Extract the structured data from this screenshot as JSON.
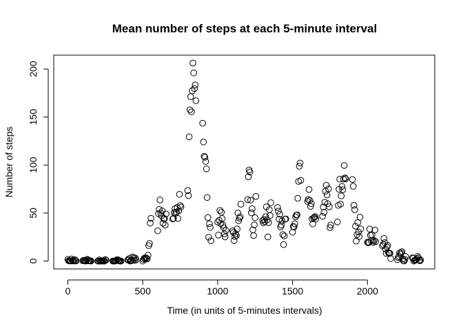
{
  "chart_data": {
    "type": "scatter",
    "title": "Mean number of steps at each 5-minute interval",
    "x_label": "Time (in units of 5-minutes intervals)",
    "y_label": "Number of steps",
    "xlim": [
      -94.2,
      2449.2
    ],
    "ylim": [
      -8.25,
      214.42
    ],
    "xticks": [
      0,
      500,
      1000,
      1500,
      2000
    ],
    "yticks": [
      0,
      50,
      100,
      150,
      200
    ],
    "color": "#000000",
    "x": [
      0,
      5,
      10,
      15,
      20,
      25,
      30,
      35,
      40,
      45,
      50,
      55,
      100,
      105,
      110,
      115,
      120,
      125,
      130,
      135,
      140,
      145,
      150,
      155,
      200,
      205,
      210,
      215,
      220,
      225,
      230,
      235,
      240,
      245,
      250,
      255,
      300,
      305,
      310,
      315,
      320,
      325,
      330,
      335,
      340,
      345,
      350,
      355,
      400,
      405,
      410,
      415,
      420,
      425,
      430,
      435,
      440,
      445,
      450,
      455,
      500,
      505,
      510,
      515,
      520,
      525,
      530,
      535,
      540,
      545,
      550,
      555,
      600,
      605,
      610,
      615,
      620,
      625,
      630,
      635,
      640,
      645,
      650,
      655,
      700,
      705,
      710,
      715,
      720,
      725,
      730,
      735,
      740,
      745,
      750,
      755,
      800,
      805,
      810,
      815,
      820,
      825,
      830,
      835,
      840,
      845,
      850,
      855,
      900,
      905,
      910,
      915,
      920,
      925,
      930,
      935,
      940,
      945,
      950,
      955,
      1000,
      1005,
      1010,
      1015,
      1020,
      1025,
      1030,
      1035,
      1040,
      1045,
      1050,
      1055,
      1100,
      1105,
      1110,
      1115,
      1120,
      1125,
      1130,
      1135,
      1140,
      1145,
      1150,
      1155,
      1200,
      1205,
      1210,
      1215,
      1220,
      1225,
      1230,
      1235,
      1240,
      1245,
      1250,
      1255,
      1300,
      1305,
      1310,
      1315,
      1320,
      1325,
      1330,
      1335,
      1340,
      1345,
      1350,
      1355,
      1400,
      1405,
      1410,
      1415,
      1420,
      1425,
      1430,
      1435,
      1440,
      1445,
      1450,
      1455,
      1500,
      1505,
      1510,
      1515,
      1520,
      1525,
      1530,
      1535,
      1540,
      1545,
      1550,
      1555,
      1600,
      1605,
      1610,
      1615,
      1620,
      1625,
      1630,
      1635,
      1640,
      1645,
      1650,
      1655,
      1700,
      1705,
      1710,
      1715,
      1720,
      1725,
      1730,
      1735,
      1740,
      1745,
      1750,
      1755,
      1800,
      1805,
      1810,
      1815,
      1820,
      1825,
      1830,
      1835,
      1840,
      1845,
      1850,
      1855,
      1900,
      1905,
      1910,
      1915,
      1920,
      1925,
      1930,
      1935,
      1940,
      1945,
      1950,
      1955,
      2000,
      2005,
      2010,
      2015,
      2020,
      2025,
      2030,
      2035,
      2040,
      2045,
      2050,
      2055,
      2100,
      2105,
      2110,
      2115,
      2120,
      2125,
      2130,
      2135,
      2140,
      2145,
      2150,
      2155,
      2200,
      2205,
      2210,
      2215,
      2220,
      2225,
      2230,
      2235,
      2240,
      2245,
      2250,
      2255,
      2300,
      2305,
      2310,
      2315,
      2320,
      2325,
      2330,
      2335,
      2340,
      2345,
      2350,
      2355
    ],
    "values": [
      1.7,
      0.3,
      0.1,
      0.2,
      0.1,
      2.1,
      0.5,
      0.9,
      0,
      1.5,
      0.3,
      0.1,
      0.3,
      0.7,
      0.2,
      0.3,
      0,
      1.1,
      1.8,
      0.2,
      0.2,
      0.4,
      0.3,
      0,
      0,
      0,
      1.1,
      0,
      0,
      0.1,
      0,
      0.2,
      0,
      0,
      1.5,
      0.9,
      0,
      0,
      0,
      0,
      0.2,
      0.6,
      1.6,
      0.6,
      0.5,
      0.1,
      0,
      0,
      1.2,
      0.9,
      2.6,
      0,
      0.3,
      0.4,
      4.1,
      0.7,
      3.5,
      0.8,
      3.1,
      1.1,
      0,
      1.6,
      3,
      2.2,
      3.3,
      3,
      2.1,
      6.1,
      16,
      18.3,
      39.5,
      44.5,
      31.5,
      49.3,
      53.8,
      63.5,
      50,
      47.1,
      52.2,
      39.3,
      44,
      44.2,
      37.4,
      49,
      43.8,
      44.4,
      50.5,
      54.5,
      49.9,
      51,
      55.7,
      44.3,
      52.3,
      69.5,
      57.8,
      56.2,
      73.4,
      68.2,
      129.4,
      157.5,
      171.2,
      155.4,
      177.3,
      206.2,
      195.9,
      179.6,
      183.4,
      167,
      143.5,
      124,
      109.1,
      108.1,
      103.7,
      96,
      66.2,
      45.2,
      24.8,
      38.8,
      35,
      21.1,
      40.6,
      27,
      42.4,
      52.7,
      38.9,
      50.8,
      44.3,
      37.4,
      34.7,
      28.3,
      25.1,
      31.9,
      31.4,
      29.7,
      21.3,
      25.5,
      28.4,
      26.5,
      33.4,
      50,
      42,
      44.6,
      46,
      59.2,
      63.9,
      87.7,
      94.8,
      92.8,
      63.4,
      50.2,
      54.5,
      32.4,
      26.5,
      37.7,
      45.1,
      67.3,
      42.3,
      39.9,
      43.3,
      41,
      46.2,
      56.4,
      42.8,
      25.1,
      40,
      53.5,
      47.3,
      60.8,
      55.8,
      52,
      43.6,
      48.7,
      35.5,
      37.5,
      41.8,
      27.5,
      17.1,
      26.1,
      43.6,
      43.8,
      30,
      36.1,
      35.5,
      38.8,
      46,
      47.8,
      48.1,
      65.3,
      82.9,
      98.7,
      102.1,
      84,
      62.1,
      64.1,
      74.5,
      63.2,
      56.9,
      59.8,
      43.9,
      38.6,
      44.7,
      45.5,
      46.2,
      43.7,
      46.6,
      56.3,
      50.7,
      61.2,
      72.7,
      78.9,
      68.9,
      59.7,
      75.1,
      56.5,
      34.8,
      37.5,
      40.7,
      58,
      74.7,
      85.3,
      59.3,
      67.8,
      77.7,
      74.2,
      85.3,
      99.5,
      86.6,
      85.6,
      84.9,
      77.8,
      58,
      53.4,
      36.3,
      20.7,
      27.4,
      40,
      30.2,
      25.5,
      45.7,
      33.5,
      19.6,
      19,
      19.3,
      33.3,
      26.8,
      21.2,
      27.3,
      21.3,
      19.5,
      21.3,
      32.3,
      20.2,
      15.9,
      17.2,
      23.5,
      19.2,
      12.5,
      8,
      14.7,
      16.3,
      8.7,
      7.8,
      8.1,
      2.6,
      1.5,
      3.7,
      4.8,
      8.5,
      7.1,
      8.7,
      9.8,
      2.2,
      0.3,
      0.1,
      1.6,
      4.6,
      3.3,
      2.8,
      0,
      0.8,
      1,
      1.6,
      2.6,
      4.7,
      3.3,
      0.6,
      0.2,
      1.1
    ]
  }
}
